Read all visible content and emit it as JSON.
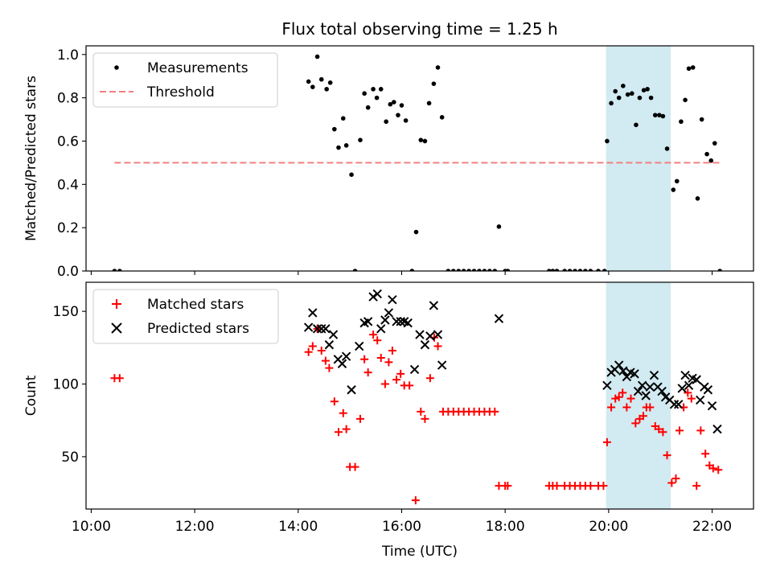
{
  "chart_data": [
    {
      "type": "scatter",
      "title": "Flux total observing time = 1.25 h",
      "xlabel": "",
      "ylabel": "Matched/Predicted stars",
      "xlim": [
        9.9,
        22.8
      ],
      "ylim": [
        0.0,
        1.04
      ],
      "yticks": [
        0.0,
        0.2,
        0.4,
        0.6,
        0.8,
        1.0
      ],
      "ytick_labels": [
        "0.0",
        "0.2",
        "0.4",
        "0.6",
        "0.8",
        "1.0"
      ],
      "legend_position": "top-left",
      "shaded_region": {
        "x": [
          19.95,
          21.2
        ],
        "color": "#add8e6"
      },
      "series": [
        {
          "name": "Measurements",
          "marker": "dot",
          "color": "#000000",
          "points": [
            [
              10.45,
              0.0
            ],
            [
              10.55,
              0.0
            ],
            [
              14.2,
              0.875
            ],
            [
              14.28,
              0.85
            ],
            [
              14.37,
              0.99
            ],
            [
              14.45,
              0.885
            ],
            [
              14.55,
              0.84
            ],
            [
              14.62,
              0.87
            ],
            [
              14.7,
              0.655
            ],
            [
              14.78,
              0.57
            ],
            [
              14.87,
              0.705
            ],
            [
              14.93,
              0.58
            ],
            [
              15.03,
              0.445
            ],
            [
              15.1,
              0.0
            ],
            [
              15.2,
              0.605
            ],
            [
              15.28,
              0.82
            ],
            [
              15.35,
              0.755
            ],
            [
              15.45,
              0.84
            ],
            [
              15.52,
              0.8
            ],
            [
              15.6,
              0.84
            ],
            [
              15.7,
              0.69
            ],
            [
              15.78,
              0.77
            ],
            [
              15.85,
              0.78
            ],
            [
              15.93,
              0.72
            ],
            [
              16.0,
              0.765
            ],
            [
              16.08,
              0.695
            ],
            [
              16.2,
              0.0
            ],
            [
              16.28,
              0.18
            ],
            [
              16.37,
              0.605
            ],
            [
              16.45,
              0.6
            ],
            [
              16.53,
              0.775
            ],
            [
              16.62,
              0.865
            ],
            [
              16.7,
              0.94
            ],
            [
              16.78,
              0.71
            ],
            [
              16.9,
              0.0
            ],
            [
              17.0,
              0.0
            ],
            [
              17.1,
              0.0
            ],
            [
              17.2,
              0.0
            ],
            [
              17.3,
              0.0
            ],
            [
              17.4,
              0.0
            ],
            [
              17.5,
              0.0
            ],
            [
              17.6,
              0.0
            ],
            [
              17.7,
              0.0
            ],
            [
              17.8,
              0.0
            ],
            [
              17.88,
              0.205
            ],
            [
              18.0,
              0.0
            ],
            [
              18.05,
              0.0
            ],
            [
              18.85,
              0.0
            ],
            [
              18.92,
              0.0
            ],
            [
              19.0,
              0.0
            ],
            [
              19.15,
              0.0
            ],
            [
              19.25,
              0.0
            ],
            [
              19.35,
              0.0
            ],
            [
              19.45,
              0.0
            ],
            [
              19.55,
              0.0
            ],
            [
              19.65,
              0.0
            ],
            [
              19.8,
              0.0
            ],
            [
              19.92,
              0.0
            ],
            [
              19.97,
              0.6
            ],
            [
              20.05,
              0.775
            ],
            [
              20.13,
              0.83
            ],
            [
              20.2,
              0.8
            ],
            [
              20.28,
              0.855
            ],
            [
              20.37,
              0.815
            ],
            [
              20.45,
              0.82
            ],
            [
              20.53,
              0.675
            ],
            [
              20.6,
              0.8
            ],
            [
              20.68,
              0.835
            ],
            [
              20.75,
              0.84
            ],
            [
              20.82,
              0.8
            ],
            [
              20.9,
              0.72
            ],
            [
              20.98,
              0.72
            ],
            [
              21.05,
              0.715
            ],
            [
              21.13,
              0.565
            ],
            [
              21.25,
              0.375
            ],
            [
              21.32,
              0.415
            ],
            [
              21.4,
              0.69
            ],
            [
              21.48,
              0.79
            ],
            [
              21.55,
              0.935
            ],
            [
              21.63,
              0.94
            ],
            [
              21.72,
              0.335
            ],
            [
              21.8,
              0.7
            ],
            [
              21.9,
              0.54
            ],
            [
              21.98,
              0.51
            ],
            [
              22.05,
              0.59
            ],
            [
              22.15,
              0.0
            ]
          ]
        },
        {
          "name": "Threshold",
          "marker": "dashed-line",
          "color": "#f08080",
          "points": [
            [
              10.45,
              0.5
            ],
            [
              22.2,
              0.5
            ]
          ]
        }
      ]
    },
    {
      "type": "scatter",
      "title": "",
      "xlabel": "Time (UTC)",
      "ylabel": "Count",
      "xlim": [
        9.9,
        22.8
      ],
      "ylim": [
        14,
        170
      ],
      "xticks": [
        10,
        12,
        14,
        16,
        18,
        20,
        22
      ],
      "xtick_labels": [
        "10:00",
        "12:00",
        "14:00",
        "16:00",
        "18:00",
        "20:00",
        "22:00"
      ],
      "yticks": [
        50,
        100,
        150
      ],
      "ytick_labels": [
        "50",
        "100",
        "150"
      ],
      "legend_position": "top-left",
      "shaded_region": {
        "x": [
          19.95,
          21.2
        ],
        "color": "#add8e6"
      },
      "series": [
        {
          "name": "Matched stars",
          "marker": "plus",
          "color": "#ff0000",
          "points": [
            [
              10.45,
              104
            ],
            [
              10.55,
              104
            ],
            [
              14.2,
              122
            ],
            [
              14.28,
              126
            ],
            [
              14.37,
              138
            ],
            [
              14.45,
              123
            ],
            [
              14.53,
              116
            ],
            [
              14.6,
              111
            ],
            [
              14.7,
              88
            ],
            [
              14.78,
              67
            ],
            [
              14.87,
              80
            ],
            [
              14.93,
              69
            ],
            [
              15.0,
              43
            ],
            [
              15.1,
              43
            ],
            [
              15.2,
              76
            ],
            [
              15.28,
              117
            ],
            [
              15.35,
              108
            ],
            [
              15.45,
              134
            ],
            [
              15.53,
              130
            ],
            [
              15.6,
              118
            ],
            [
              15.68,
              100
            ],
            [
              15.75,
              115
            ],
            [
              15.82,
              123
            ],
            [
              15.9,
              103
            ],
            [
              15.98,
              107
            ],
            [
              16.05,
              99
            ],
            [
              16.15,
              99
            ],
            [
              16.27,
              20
            ],
            [
              16.37,
              81
            ],
            [
              16.45,
              76
            ],
            [
              16.55,
              104
            ],
            [
              16.63,
              132
            ],
            [
              16.7,
              126
            ],
            [
              16.8,
              81
            ],
            [
              16.9,
              81
            ],
            [
              17.0,
              81
            ],
            [
              17.1,
              81
            ],
            [
              17.2,
              81
            ],
            [
              17.3,
              81
            ],
            [
              17.4,
              81
            ],
            [
              17.5,
              81
            ],
            [
              17.6,
              81
            ],
            [
              17.7,
              81
            ],
            [
              17.8,
              81
            ],
            [
              17.88,
              30
            ],
            [
              18.0,
              30
            ],
            [
              18.05,
              30
            ],
            [
              18.85,
              30
            ],
            [
              18.92,
              30
            ],
            [
              19.0,
              30
            ],
            [
              19.15,
              30
            ],
            [
              19.25,
              30
            ],
            [
              19.35,
              30
            ],
            [
              19.45,
              30
            ],
            [
              19.55,
              30
            ],
            [
              19.65,
              30
            ],
            [
              19.8,
              30
            ],
            [
              19.9,
              30
            ],
            [
              19.97,
              60
            ],
            [
              20.05,
              84
            ],
            [
              20.13,
              90
            ],
            [
              20.2,
              91
            ],
            [
              20.27,
              94
            ],
            [
              20.35,
              84
            ],
            [
              20.43,
              90
            ],
            [
              20.52,
              73
            ],
            [
              20.6,
              76
            ],
            [
              20.67,
              78
            ],
            [
              20.73,
              84
            ],
            [
              20.8,
              84
            ],
            [
              20.9,
              71
            ],
            [
              20.97,
              69
            ],
            [
              21.05,
              67
            ],
            [
              21.13,
              51
            ],
            [
              21.22,
              32
            ],
            [
              21.3,
              35
            ],
            [
              21.37,
              68
            ],
            [
              21.45,
              84
            ],
            [
              21.53,
              94
            ],
            [
              21.6,
              90
            ],
            [
              21.7,
              30
            ],
            [
              21.78,
              68
            ],
            [
              21.87,
              52
            ],
            [
              21.95,
              44
            ],
            [
              22.02,
              42
            ],
            [
              22.12,
              41
            ]
          ]
        },
        {
          "name": "Predicted stars",
          "marker": "cross",
          "color": "#000000",
          "points": [
            [
              14.2,
              139
            ],
            [
              14.28,
              149
            ],
            [
              14.37,
              138
            ],
            [
              14.45,
              138
            ],
            [
              14.53,
              138
            ],
            [
              14.6,
              127
            ],
            [
              14.68,
              134
            ],
            [
              14.77,
              117
            ],
            [
              14.85,
              114
            ],
            [
              14.93,
              119
            ],
            [
              15.03,
              96
            ],
            [
              15.18,
              126
            ],
            [
              15.28,
              142
            ],
            [
              15.35,
              143
            ],
            [
              15.45,
              160
            ],
            [
              15.53,
              162
            ],
            [
              15.6,
              138
            ],
            [
              15.68,
              144
            ],
            [
              15.75,
              149
            ],
            [
              15.82,
              158
            ],
            [
              15.9,
              143
            ],
            [
              15.98,
              143
            ],
            [
              16.05,
              143
            ],
            [
              16.12,
              142
            ],
            [
              16.25,
              110
            ],
            [
              16.35,
              134
            ],
            [
              16.45,
              127
            ],
            [
              16.55,
              133
            ],
            [
              16.62,
              154
            ],
            [
              16.7,
              134
            ],
            [
              16.78,
              113
            ],
            [
              17.88,
              145
            ],
            [
              19.97,
              99
            ],
            [
              20.05,
              108
            ],
            [
              20.12,
              110
            ],
            [
              20.2,
              113
            ],
            [
              20.28,
              109
            ],
            [
              20.35,
              105
            ],
            [
              20.42,
              108
            ],
            [
              20.5,
              107
            ],
            [
              20.57,
              95
            ],
            [
              20.65,
              99
            ],
            [
              20.72,
              92
            ],
            [
              20.8,
              98
            ],
            [
              20.88,
              106
            ],
            [
              20.95,
              98
            ],
            [
              21.03,
              95
            ],
            [
              21.1,
              91
            ],
            [
              21.18,
              89
            ],
            [
              21.27,
              86
            ],
            [
              21.35,
              86
            ],
            [
              21.42,
              97
            ],
            [
              21.48,
              106
            ],
            [
              21.55,
              99
            ],
            [
              21.62,
              104
            ],
            [
              21.7,
              103
            ],
            [
              21.77,
              89
            ],
            [
              21.85,
              98
            ],
            [
              21.92,
              96
            ],
            [
              22.0,
              85
            ],
            [
              22.1,
              69
            ]
          ]
        }
      ]
    }
  ]
}
